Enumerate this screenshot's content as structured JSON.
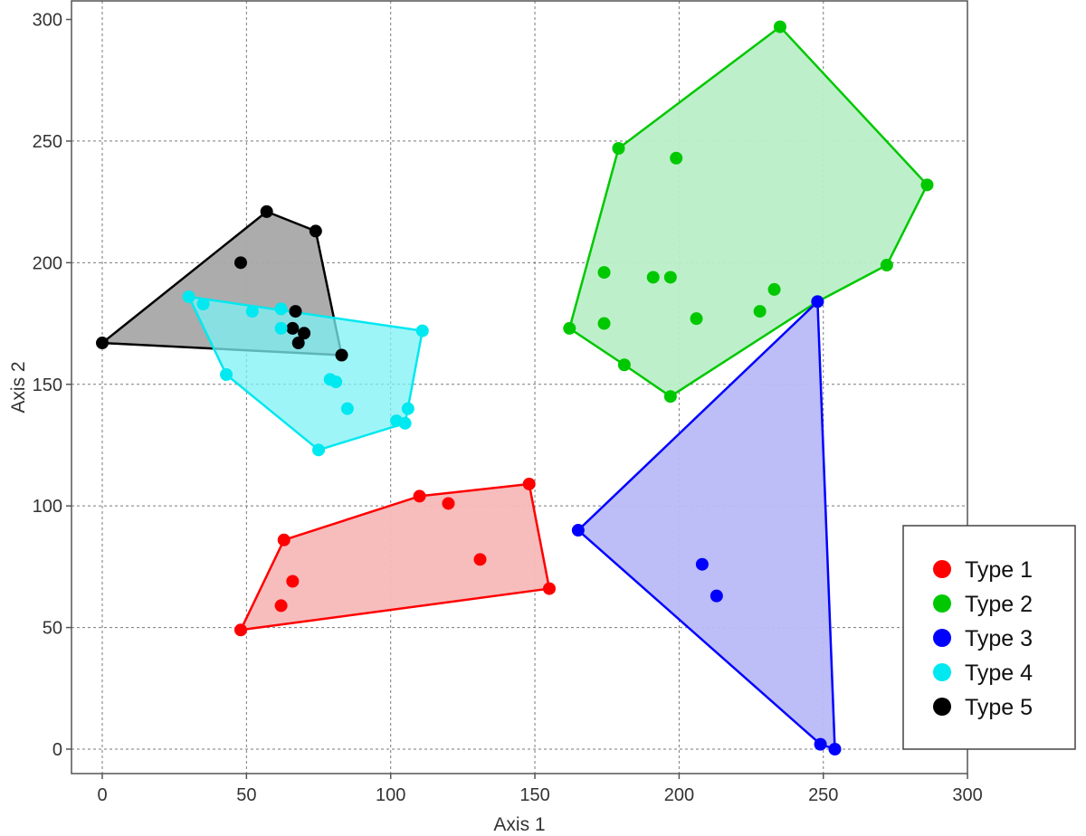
{
  "chart_data": {
    "type": "scatter",
    "xlabel": "Axis 1",
    "ylabel": "Axis 2",
    "xlim": [
      -10,
      300
    ],
    "ylim": [
      -10,
      300
    ],
    "xticks": [
      0,
      50,
      100,
      150,
      200,
      250,
      300
    ],
    "yticks": [
      0,
      50,
      100,
      150,
      200,
      250,
      300
    ],
    "grid": true,
    "legend_position": "bottom-right",
    "series": [
      {
        "name": "Type 1",
        "color": "#ff0000",
        "fill": "#f7b9b9",
        "points": [
          [
            48,
            49
          ],
          [
            63,
            86
          ],
          [
            110,
            104
          ],
          [
            148,
            109
          ],
          [
            155,
            66
          ],
          [
            66,
            69
          ],
          [
            62,
            59
          ],
          [
            120,
            101
          ],
          [
            131,
            78
          ]
        ],
        "hull": [
          [
            48,
            49
          ],
          [
            63,
            86
          ],
          [
            110,
            104
          ],
          [
            148,
            109
          ],
          [
            155,
            66
          ]
        ]
      },
      {
        "name": "Type 2",
        "color": "#00c800",
        "fill": "#b9efc7",
        "points": [
          [
            162,
            173
          ],
          [
            179,
            247
          ],
          [
            235,
            297
          ],
          [
            286,
            232
          ],
          [
            272,
            199
          ],
          [
            248,
            184
          ],
          [
            197,
            145
          ],
          [
            181,
            158
          ],
          [
            174,
            196
          ],
          [
            191,
            194
          ],
          [
            197,
            194
          ],
          [
            174,
            175
          ],
          [
            199,
            243
          ],
          [
            206,
            177
          ],
          [
            228,
            180
          ],
          [
            233,
            189
          ]
        ],
        "hull": [
          [
            162,
            173
          ],
          [
            179,
            247
          ],
          [
            235,
            297
          ],
          [
            286,
            232
          ],
          [
            272,
            199
          ],
          [
            248,
            184
          ],
          [
            197,
            145
          ],
          [
            181,
            158
          ]
        ]
      },
      {
        "name": "Type 3",
        "color": "#0000ff",
        "fill": "#b9b9f7",
        "points": [
          [
            165,
            90
          ],
          [
            248,
            184
          ],
          [
            254,
            0
          ],
          [
            249,
            2
          ],
          [
            208,
            76
          ],
          [
            213,
            63
          ]
        ],
        "hull": [
          [
            165,
            90
          ],
          [
            248,
            184
          ],
          [
            254,
            0
          ],
          [
            249,
            2
          ]
        ]
      },
      {
        "name": "Type 4",
        "color": "#00e8f0",
        "fill": "#7df2f6",
        "points": [
          [
            30,
            186
          ],
          [
            111,
            172
          ],
          [
            105,
            134
          ],
          [
            75,
            123
          ],
          [
            43,
            154
          ],
          [
            35,
            183
          ],
          [
            52,
            180
          ],
          [
            62,
            181
          ],
          [
            62,
            173
          ],
          [
            79,
            152
          ],
          [
            81,
            151
          ],
          [
            85,
            140
          ],
          [
            102,
            135
          ],
          [
            106,
            140
          ]
        ],
        "hull": [
          [
            30,
            186
          ],
          [
            111,
            172
          ],
          [
            105,
            134
          ],
          [
            75,
            123
          ],
          [
            43,
            154
          ]
        ]
      },
      {
        "name": "Type 5",
        "color": "#000000",
        "fill": "#a8a8a8",
        "points": [
          [
            0,
            167
          ],
          [
            57,
            221
          ],
          [
            74,
            213
          ],
          [
            83,
            162
          ],
          [
            48,
            200
          ],
          [
            67,
            180
          ],
          [
            66,
            173
          ],
          [
            70,
            171
          ],
          [
            68,
            167
          ]
        ],
        "hull": [
          [
            0,
            167
          ],
          [
            57,
            221
          ],
          [
            74,
            213
          ],
          [
            83,
            162
          ]
        ]
      }
    ]
  }
}
